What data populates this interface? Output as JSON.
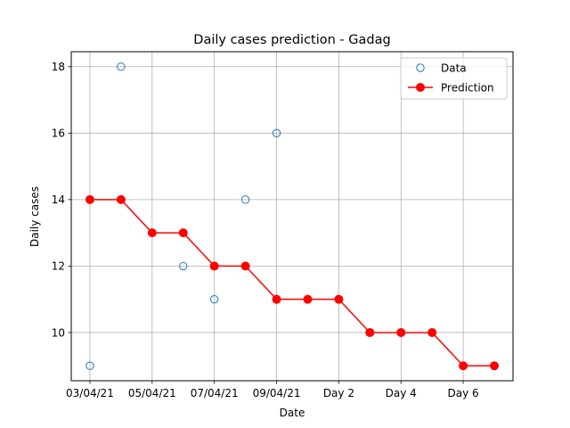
{
  "chart_data": {
    "type": "line",
    "title": "Daily cases prediction - Gadag",
    "xlabel": "Date",
    "ylabel": "Daily cases",
    "x_ticks": [
      {
        "x": 0,
        "label": "03/04/21"
      },
      {
        "x": 2,
        "label": "05/04/21"
      },
      {
        "x": 4,
        "label": "07/04/21"
      },
      {
        "x": 6,
        "label": "09/04/21"
      },
      {
        "x": 8,
        "label": "Day 2"
      },
      {
        "x": 10,
        "label": "Day 4"
      },
      {
        "x": 12,
        "label": "Day 6"
      }
    ],
    "y_ticks": [
      10,
      12,
      14,
      16,
      18
    ],
    "xlim": [
      -0.6,
      13.6
    ],
    "ylim": [
      8.55,
      18.45
    ],
    "grid": true,
    "legend_position": "top-right",
    "series": [
      {
        "name": "Data",
        "style": "open-circle",
        "color": "#1f77b4",
        "x": [
          0,
          1,
          3,
          4,
          5,
          6
        ],
        "y": [
          9,
          18,
          12,
          11,
          14,
          16
        ]
      },
      {
        "name": "Prediction",
        "style": "line-marker",
        "color": "#ff0000",
        "x": [
          0,
          1,
          2,
          3,
          4,
          5,
          6,
          7,
          8,
          9,
          10,
          11,
          12,
          13
        ],
        "y": [
          14,
          14,
          13,
          13,
          12,
          12,
          11,
          11,
          11,
          10,
          10,
          10,
          9,
          9
        ]
      }
    ]
  }
}
